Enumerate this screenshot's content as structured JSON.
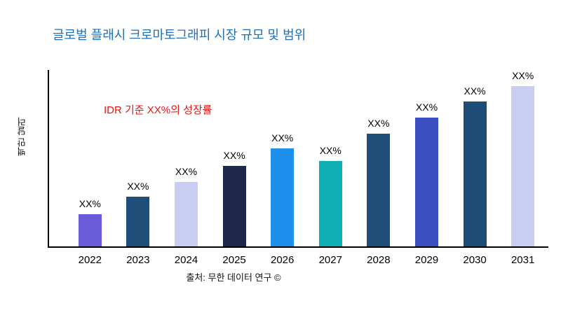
{
  "title": "글로벌 플래시 크로마토그래피 시장 규모 및 범위",
  "annotation": "IDR 기준 XX%의 성장률",
  "source": "출처: 무한 데이터 연구 ©",
  "colors": {
    "title": "#1F6FB8",
    "annotation": "#EE1111",
    "axis": "#000000"
  },
  "chart_data": {
    "type": "bar",
    "title": "글로벌 플래시 크로마토그래피 시장 규모 및 범위",
    "xlabel": "",
    "ylabel": "백만 달러",
    "categories": [
      "2022",
      "2023",
      "2024",
      "2025",
      "2026",
      "2027",
      "2028",
      "2029",
      "2030",
      "2031"
    ],
    "values": [
      20,
      31,
      40,
      50,
      61,
      53,
      70,
      80,
      90,
      100
    ],
    "bar_labels": [
      "XX%",
      "XX%",
      "XX%",
      "XX%",
      "XX%",
      "XX%",
      "XX%",
      "XX%",
      "XX%",
      "XX%"
    ],
    "bar_colors": [
      "#6A5CD8",
      "#1F4E79",
      "#C9CDF0",
      "#1C2749",
      "#1E8FEA",
      "#0FB0B5",
      "#1F4E79",
      "#3B4FC0",
      "#1D4C77",
      "#C9CDF0"
    ],
    "ylim": [
      0,
      110
    ],
    "grid": false,
    "legend": false,
    "annotation": "IDR 기준 XX%의 성장률"
  }
}
